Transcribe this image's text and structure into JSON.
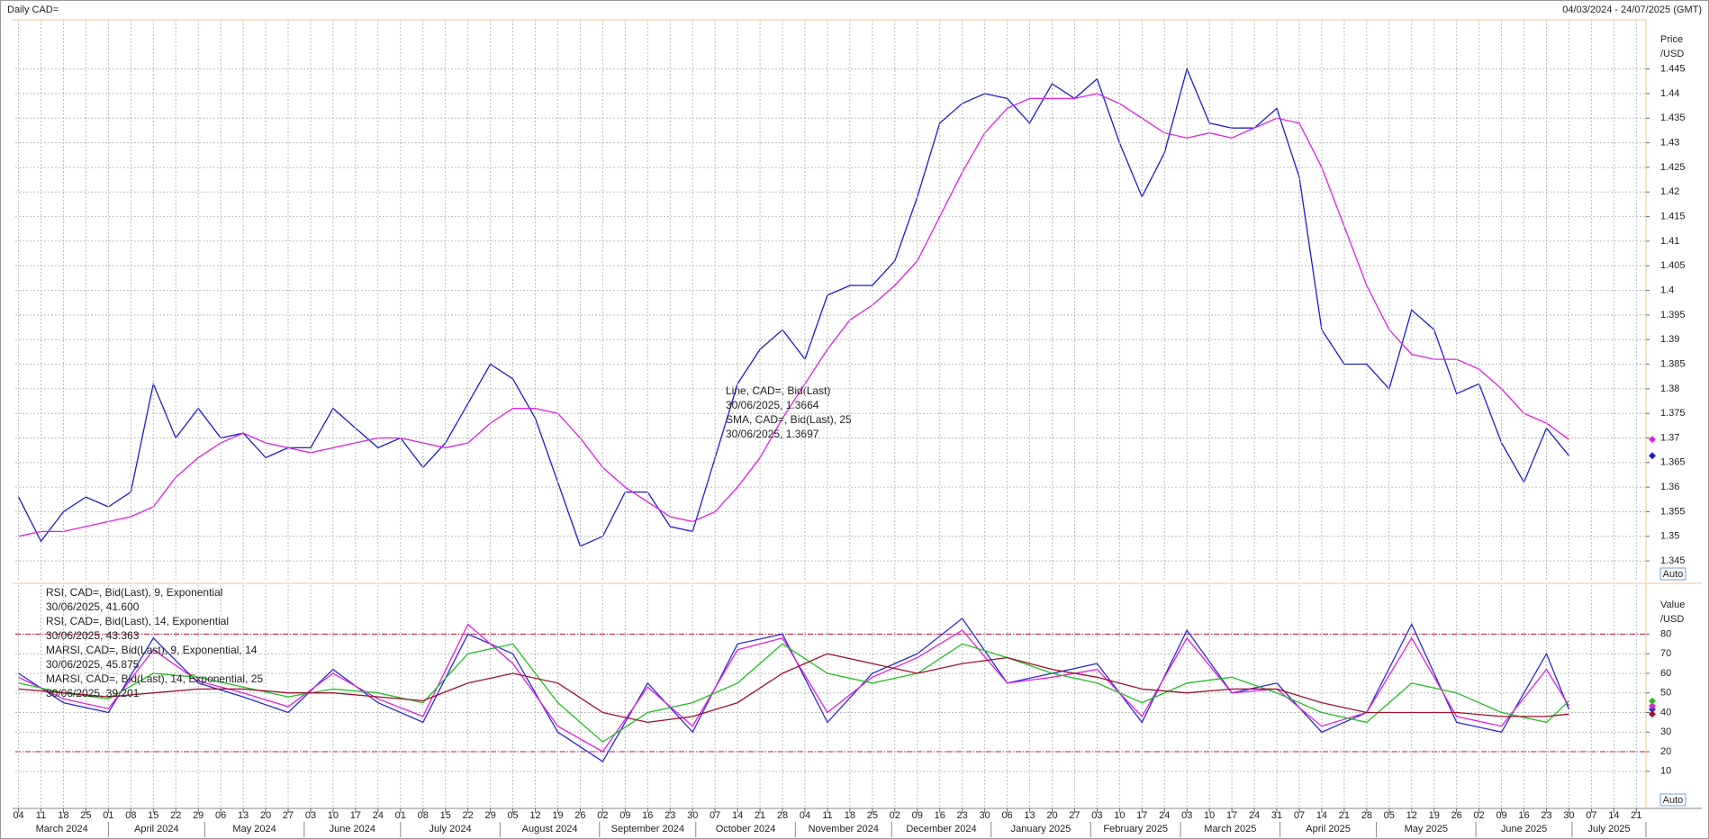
{
  "chart_data": [
    {
      "type": "line",
      "title": "Daily CAD=",
      "subtitle": "04/03/2024 - 24/07/2025 (GMT)",
      "ylabel": "Price",
      "yunit": "/USD",
      "button": "Auto",
      "xlim": [
        "2024-03-03",
        "2025-07-24"
      ],
      "ylim": [
        1.341,
        1.455
      ],
      "grid": true,
      "yticks": [
        1.345,
        1.35,
        1.355,
        1.36,
        1.365,
        1.37,
        1.375,
        1.38,
        1.385,
        1.39,
        1.395,
        1.4,
        1.405,
        1.41,
        1.415,
        1.42,
        1.425,
        1.43,
        1.435,
        1.44,
        1.445
      ],
      "x": [
        "2024-03-04",
        "2024-03-11",
        "2024-03-18",
        "2024-03-25",
        "2024-04-01",
        "2024-04-08",
        "2024-04-15",
        "2024-04-22",
        "2024-04-29",
        "2024-05-06",
        "2024-05-13",
        "2024-05-20",
        "2024-05-27",
        "2024-06-03",
        "2024-06-10",
        "2024-06-17",
        "2024-06-24",
        "2024-07-01",
        "2024-07-08",
        "2024-07-15",
        "2024-07-22",
        "2024-07-29",
        "2024-08-05",
        "2024-08-12",
        "2024-08-19",
        "2024-08-26",
        "2024-09-02",
        "2024-09-09",
        "2024-09-16",
        "2024-09-23",
        "2024-09-30",
        "2024-10-07",
        "2024-10-14",
        "2024-10-21",
        "2024-10-28",
        "2024-11-04",
        "2024-11-11",
        "2024-11-18",
        "2024-11-25",
        "2024-12-02",
        "2024-12-09",
        "2024-12-16",
        "2024-12-23",
        "2024-12-30",
        "2025-01-06",
        "2025-01-13",
        "2025-01-20",
        "2025-01-27",
        "2025-02-03",
        "2025-02-10",
        "2025-02-17",
        "2025-02-24",
        "2025-03-03",
        "2025-03-10",
        "2025-03-17",
        "2025-03-24",
        "2025-03-31",
        "2025-04-07",
        "2025-04-14",
        "2025-04-21",
        "2025-04-28",
        "2025-05-05",
        "2025-05-12",
        "2025-05-19",
        "2025-05-26",
        "2025-06-02",
        "2025-06-09",
        "2025-06-16",
        "2025-06-23",
        "2025-06-30"
      ],
      "series": [
        {
          "name": "Line, CAD=, Bid(Last)",
          "legend_value": "30/06/2025, 1.3664",
          "color": "#1c1cd4",
          "values": [
            1.358,
            1.349,
            1.355,
            1.358,
            1.356,
            1.359,
            1.381,
            1.37,
            1.376,
            1.37,
            1.371,
            1.366,
            1.368,
            1.368,
            1.376,
            1.372,
            1.368,
            1.37,
            1.364,
            1.369,
            1.377,
            1.385,
            1.382,
            1.374,
            1.361,
            1.348,
            1.35,
            1.359,
            1.359,
            1.352,
            1.351,
            1.366,
            1.381,
            1.388,
            1.392,
            1.386,
            1.399,
            1.401,
            1.401,
            1.406,
            1.419,
            1.434,
            1.438,
            1.44,
            1.439,
            1.434,
            1.442,
            1.439,
            1.443,
            1.43,
            1.419,
            1.428,
            1.445,
            1.434,
            1.433,
            1.433,
            1.437,
            1.423,
            1.392,
            1.385,
            1.385,
            1.38,
            1.396,
            1.392,
            1.379,
            1.381,
            1.369,
            1.361,
            1.372,
            1.3664
          ]
        },
        {
          "name": "SMA, CAD=, Bid(Last),  25",
          "legend_value": "30/06/2025, 1.3697",
          "color": "#e020e0",
          "values": [
            1.35,
            1.351,
            1.351,
            1.352,
            1.353,
            1.354,
            1.356,
            1.362,
            1.366,
            1.369,
            1.371,
            1.369,
            1.368,
            1.367,
            1.368,
            1.369,
            1.37,
            1.37,
            1.369,
            1.368,
            1.369,
            1.373,
            1.376,
            1.376,
            1.375,
            1.37,
            1.364,
            1.36,
            1.357,
            1.354,
            1.353,
            1.355,
            1.36,
            1.366,
            1.374,
            1.381,
            1.388,
            1.394,
            1.397,
            1.401,
            1.406,
            1.415,
            1.424,
            1.432,
            1.437,
            1.439,
            1.439,
            1.439,
            1.44,
            1.438,
            1.435,
            1.432,
            1.431,
            1.432,
            1.431,
            1.433,
            1.435,
            1.434,
            1.425,
            1.413,
            1.401,
            1.392,
            1.387,
            1.386,
            1.386,
            1.384,
            1.38,
            1.375,
            1.373,
            1.3697
          ]
        }
      ]
    },
    {
      "type": "line",
      "ylabel": "Value",
      "yunit": "/USD",
      "button": "Auto",
      "xlim": [
        "2024-03-03",
        "2025-07-24"
      ],
      "ylim": [
        -8,
        105
      ],
      "grid": true,
      "yticks": [
        10,
        20,
        30,
        40,
        50,
        60,
        70,
        80
      ],
      "reference_lines": [
        80,
        20
      ],
      "reference_color": "#c8103c",
      "xticks": [
        {
          "value": "2024-03-04",
          "label": "04"
        },
        {
          "value": "2024-03-11",
          "label": "11"
        },
        {
          "value": "2024-03-18",
          "label": "18"
        },
        {
          "value": "2024-03-25",
          "label": "25"
        },
        {
          "value": "2024-04-01",
          "label": "01"
        },
        {
          "value": "2024-04-08",
          "label": "08"
        },
        {
          "value": "2024-04-15",
          "label": "15"
        },
        {
          "value": "2024-04-22",
          "label": "22"
        },
        {
          "value": "2024-04-29",
          "label": "29"
        },
        {
          "value": "2024-05-06",
          "label": "06"
        },
        {
          "value": "2024-05-13",
          "label": "13"
        },
        {
          "value": "2024-05-20",
          "label": "20"
        },
        {
          "value": "2024-05-27",
          "label": "27"
        },
        {
          "value": "2024-06-03",
          "label": "03"
        },
        {
          "value": "2024-06-10",
          "label": "10"
        },
        {
          "value": "2024-06-17",
          "label": "17"
        },
        {
          "value": "2024-06-24",
          "label": "24"
        },
        {
          "value": "2024-07-01",
          "label": "01"
        },
        {
          "value": "2024-07-08",
          "label": "08"
        },
        {
          "value": "2024-07-15",
          "label": "15"
        },
        {
          "value": "2024-07-22",
          "label": "22"
        },
        {
          "value": "2024-07-29",
          "label": "29"
        },
        {
          "value": "2024-08-05",
          "label": "05"
        },
        {
          "value": "2024-08-12",
          "label": "12"
        },
        {
          "value": "2024-08-19",
          "label": "19"
        },
        {
          "value": "2024-08-26",
          "label": "26"
        },
        {
          "value": "2024-09-02",
          "label": "02"
        },
        {
          "value": "2024-09-09",
          "label": "09"
        },
        {
          "value": "2024-09-16",
          "label": "16"
        },
        {
          "value": "2024-09-23",
          "label": "23"
        },
        {
          "value": "2024-09-30",
          "label": "30"
        },
        {
          "value": "2024-10-07",
          "label": "07"
        },
        {
          "value": "2024-10-14",
          "label": "14"
        },
        {
          "value": "2024-10-21",
          "label": "21"
        },
        {
          "value": "2024-10-28",
          "label": "28"
        },
        {
          "value": "2024-11-04",
          "label": "04"
        },
        {
          "value": "2024-11-11",
          "label": "11"
        },
        {
          "value": "2024-11-18",
          "label": "18"
        },
        {
          "value": "2024-11-25",
          "label": "25"
        },
        {
          "value": "2024-12-02",
          "label": "02"
        },
        {
          "value": "2024-12-09",
          "label": "09"
        },
        {
          "value": "2024-12-16",
          "label": "16"
        },
        {
          "value": "2024-12-23",
          "label": "23"
        },
        {
          "value": "2024-12-30",
          "label": "30"
        },
        {
          "value": "2025-01-06",
          "label": "06"
        },
        {
          "value": "2025-01-13",
          "label": "13"
        },
        {
          "value": "2025-01-20",
          "label": "20"
        },
        {
          "value": "2025-01-27",
          "label": "27"
        },
        {
          "value": "2025-02-03",
          "label": "03"
        },
        {
          "value": "2025-02-10",
          "label": "10"
        },
        {
          "value": "2025-02-17",
          "label": "17"
        },
        {
          "value": "2025-02-24",
          "label": "24"
        },
        {
          "value": "2025-03-03",
          "label": "03"
        },
        {
          "value": "2025-03-10",
          "label": "10"
        },
        {
          "value": "2025-03-17",
          "label": "17"
        },
        {
          "value": "2025-03-24",
          "label": "24"
        },
        {
          "value": "2025-03-31",
          "label": "31"
        },
        {
          "value": "2025-04-07",
          "label": "07"
        },
        {
          "value": "2025-04-14",
          "label": "14"
        },
        {
          "value": "2025-04-21",
          "label": "21"
        },
        {
          "value": "2025-04-28",
          "label": "28"
        },
        {
          "value": "2025-05-05",
          "label": "05"
        },
        {
          "value": "2025-05-12",
          "label": "12"
        },
        {
          "value": "2025-05-19",
          "label": "19"
        },
        {
          "value": "2025-05-26",
          "label": "26"
        },
        {
          "value": "2025-06-02",
          "label": "02"
        },
        {
          "value": "2025-06-09",
          "label": "09"
        },
        {
          "value": "2025-06-16",
          "label": "16"
        },
        {
          "value": "2025-06-23",
          "label": "23"
        },
        {
          "value": "2025-06-30",
          "label": "30"
        },
        {
          "value": "2025-07-07",
          "label": "07"
        },
        {
          "value": "2025-07-14",
          "label": "14"
        },
        {
          "value": "2025-07-21",
          "label": "21"
        }
      ],
      "months": [
        {
          "value": "2024-03",
          "label": "March 2024"
        },
        {
          "value": "2024-04",
          "label": "April 2024"
        },
        {
          "value": "2024-05",
          "label": "May 2024"
        },
        {
          "value": "2024-06",
          "label": "June 2024"
        },
        {
          "value": "2024-07",
          "label": "July 2024"
        },
        {
          "value": "2024-08",
          "label": "August 2024"
        },
        {
          "value": "2024-09",
          "label": "September 2024"
        },
        {
          "value": "2024-10",
          "label": "October 2024"
        },
        {
          "value": "2024-11",
          "label": "November 2024"
        },
        {
          "value": "2024-12",
          "label": "December 2024"
        },
        {
          "value": "2025-01",
          "label": "January 2025"
        },
        {
          "value": "2025-02",
          "label": "February 2025"
        },
        {
          "value": "2025-03",
          "label": "March 2025"
        },
        {
          "value": "2025-04",
          "label": "April 2025"
        },
        {
          "value": "2025-05",
          "label": "May 2025"
        },
        {
          "value": "2025-06",
          "label": "June 2025"
        },
        {
          "value": "2025-07",
          "label": "July 2025"
        }
      ],
      "x": [
        "2024-03-04",
        "2024-03-18",
        "2024-04-01",
        "2024-04-15",
        "2024-04-29",
        "2024-05-13",
        "2024-05-27",
        "2024-06-10",
        "2024-06-24",
        "2024-07-08",
        "2024-07-22",
        "2024-08-05",
        "2024-08-19",
        "2024-09-02",
        "2024-09-16",
        "2024-09-30",
        "2024-10-14",
        "2024-10-28",
        "2024-11-11",
        "2024-11-25",
        "2024-12-09",
        "2024-12-23",
        "2025-01-06",
        "2025-01-20",
        "2025-02-03",
        "2025-02-17",
        "2025-03-03",
        "2025-03-17",
        "2025-03-31",
        "2025-04-14",
        "2025-04-28",
        "2025-05-12",
        "2025-05-26",
        "2025-06-09",
        "2025-06-23",
        "2025-06-30"
      ],
      "series": [
        {
          "name": "RSI, CAD=, Bid(Last),  9, Exponential",
          "legend_value": "30/06/2025, 41.600",
          "color": "#2a2ad8",
          "values": [
            60,
            45,
            40,
            78,
            55,
            48,
            40,
            62,
            45,
            35,
            80,
            70,
            30,
            15,
            55,
            30,
            75,
            80,
            35,
            60,
            70,
            88,
            55,
            60,
            65,
            35,
            82,
            50,
            55,
            30,
            40,
            85,
            35,
            30,
            70,
            41.6
          ]
        },
        {
          "name": "RSI, CAD=, Bid(Last),  14, Exponential",
          "legend_value": "30/06/2025, 43.363",
          "color": "#e020e0",
          "values": [
            58,
            47,
            42,
            72,
            56,
            50,
            43,
            60,
            47,
            38,
            85,
            65,
            33,
            20,
            53,
            33,
            72,
            78,
            40,
            58,
            68,
            82,
            55,
            58,
            62,
            38,
            78,
            50,
            52,
            33,
            40,
            78,
            38,
            33,
            62,
            43.363
          ]
        },
        {
          "name": "MARSI, CAD=, Bid(Last),  9, Exponential, 14",
          "legend_value": "30/06/2025, 45.875",
          "color": "#20c020",
          "values": [
            55,
            50,
            47,
            60,
            58,
            53,
            48,
            52,
            50,
            45,
            70,
            75,
            45,
            25,
            40,
            45,
            55,
            75,
            60,
            55,
            60,
            75,
            68,
            60,
            55,
            45,
            55,
            58,
            50,
            40,
            35,
            55,
            50,
            40,
            35,
            45.875
          ]
        },
        {
          "name": "MARSI, CAD=, Bid(Last),  14, Exponential, 25",
          "legend_value": "30/06/2025, 39.201",
          "color": "#a0102c",
          "values": [
            52,
            50,
            48,
            50,
            52,
            52,
            50,
            50,
            48,
            46,
            55,
            60,
            55,
            40,
            35,
            38,
            45,
            60,
            70,
            65,
            60,
            65,
            68,
            62,
            58,
            52,
            50,
            52,
            52,
            45,
            40,
            40,
            40,
            38,
            38,
            39.201
          ]
        }
      ]
    }
  ]
}
